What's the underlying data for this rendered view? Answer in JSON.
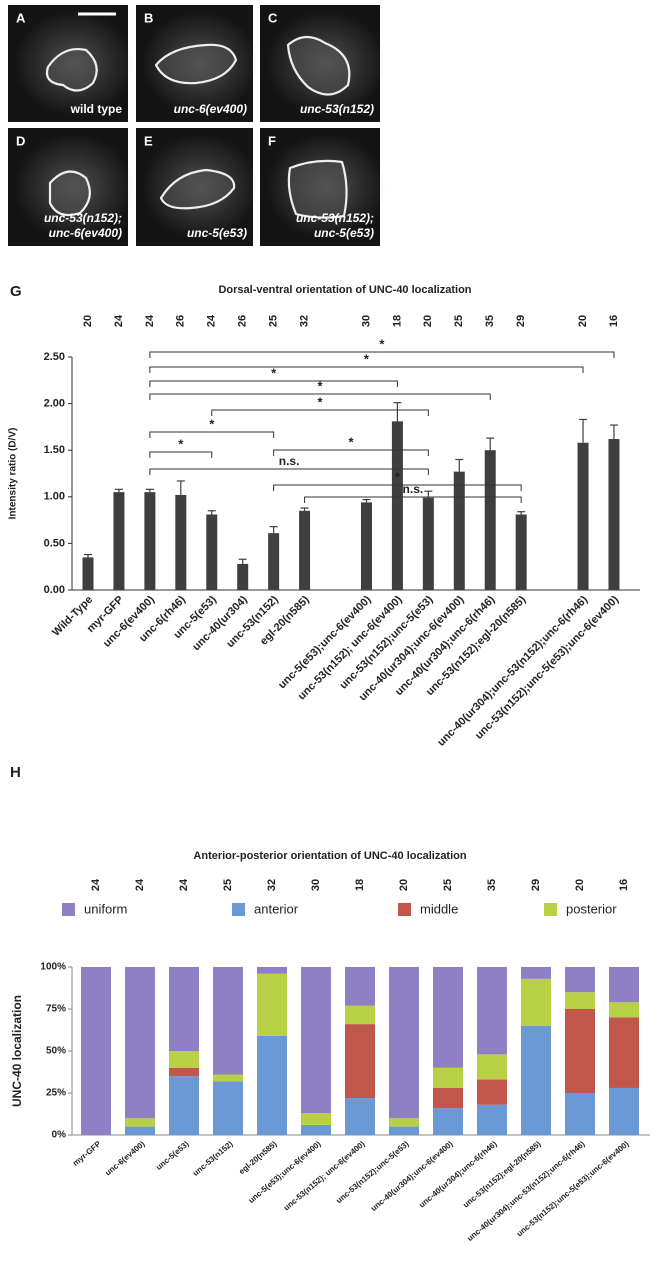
{
  "panels": [
    {
      "letter": "A",
      "label": [
        "wild type"
      ]
    },
    {
      "letter": "B",
      "label": [
        "unc-6(ev400)"
      ]
    },
    {
      "letter": "C",
      "label": [
        "unc-53(n152)"
      ]
    },
    {
      "letter": "D",
      "label": [
        "unc-53(n152);",
        "unc-6(ev400)"
      ]
    },
    {
      "letter": "E",
      "label": [
        "unc-5(e53)"
      ]
    },
    {
      "letter": "F",
      "label": [
        "unc-53(n152);",
        "unc-5(e53)"
      ]
    }
  ],
  "chart_data": [
    {
      "type": "bar",
      "panel": "G",
      "title": "Dorsal-ventral orientation of UNC-40 localization",
      "ylabel": "Intensity ratio (D/V)",
      "categories": [
        "Wild-Type",
        "myr-GFP",
        "unc-6(ev400)",
        "unc-6(rh46)",
        "unc-5(e53)",
        "unc-40(ur304)",
        "unc-53(n152)",
        "egl-20(n585)",
        null,
        "unc-5(e53);unc-6(ev400)",
        "unc-53(n152); unc-6(ev400)",
        "unc-53(n152);unc-5(e53)",
        "unc-40(ur304);unc-6(ev400)",
        "unc-40(ur304);unc-6(rh46)",
        "unc-53(n152);egl-20(n585)",
        null,
        "unc-40(ur304);unc-53(n152);unc-6(rh46)",
        "unc-53(n152);unc-5(e53);unc-6(ev400)"
      ],
      "n_labels": [
        "20",
        "24",
        "24",
        "26",
        "24",
        "26",
        "25",
        "32",
        null,
        "30",
        "18",
        "20",
        "25",
        "35",
        "29",
        null,
        "20",
        "16"
      ],
      "values": [
        0.35,
        1.05,
        1.05,
        1.02,
        0.81,
        0.28,
        0.61,
        0.85,
        null,
        0.94,
        1.81,
        0.99,
        1.27,
        1.5,
        0.81,
        null,
        1.58,
        1.62
      ],
      "errors": [
        0.03,
        0.03,
        0.03,
        0.15,
        0.04,
        0.05,
        0.07,
        0.03,
        null,
        0.03,
        0.2,
        0.07,
        0.13,
        0.13,
        0.03,
        null,
        0.25,
        0.15
      ],
      "color": "#3f3f3f",
      "ylim": [
        0,
        2.5
      ],
      "yticks": [
        {
          "value": 0,
          "label": "0.00"
        },
        {
          "value": 0.5,
          "label": "0.50"
        },
        {
          "value": 1,
          "label": "1.00"
        },
        {
          "value": 1.5,
          "label": "1.50"
        },
        {
          "value": 2,
          "label": "2.00"
        },
        {
          "value": 2.5,
          "label": "2.50"
        }
      ],
      "brackets": [
        {
          "from": 2,
          "to": 17,
          "label": "*"
        },
        {
          "from": 2,
          "to": 16,
          "label": "*"
        },
        {
          "from": 2,
          "to": 10,
          "label": "*"
        },
        {
          "from": 2,
          "to": 13,
          "label": "*"
        },
        {
          "from": 4,
          "to": 11,
          "label": "*"
        },
        {
          "from": 2,
          "to": 6,
          "label": "*"
        },
        {
          "from": 2,
          "to": 4,
          "label": "*"
        },
        {
          "from": 6,
          "to": 11,
          "label": "*"
        },
        {
          "from": 2,
          "to": 11,
          "label": "n.s."
        },
        {
          "from": 6,
          "to": 14,
          "label": "*"
        },
        {
          "from": 7,
          "to": 14,
          "label": "n.s."
        }
      ]
    },
    {
      "type": "stacked-bar",
      "panel": "H",
      "title": "Anterior-posterior orientation of UNC-40 localization",
      "ylabel": "UNC-40 localization",
      "categories": [
        "myr-GFP",
        "unc-6(ev400)",
        "unc-5(e53)",
        "unc-53(n152)",
        "egl-20(n585)",
        "unc-5(e53);unc-6(ev400)",
        "unc-53(n152); unc-6(ev400)",
        "unc-53(n152);unc-5(e53)",
        "unc-40(ur304);unc-6(ev400)",
        "unc-40(ur304);unc-6(rh46)",
        "unc-53(n152);egl-20(n585)",
        "unc-40(ur304);unc-53(n152);unc-6(rh46)",
        "unc-53(n152);unc-5(e53);unc-6(ev400)"
      ],
      "n_labels": [
        "24",
        "24",
        "24",
        "25",
        "32",
        "30",
        "18",
        "20",
        "25",
        "35",
        "29",
        "20",
        "16"
      ],
      "series": [
        {
          "name": "uniform",
          "color": "#8f7fc4",
          "values": [
            100,
            90,
            50,
            64,
            4,
            87,
            23,
            90,
            60,
            52,
            7,
            15,
            21
          ]
        },
        {
          "name": "anterior",
          "color": "#6a99d6",
          "values": [
            0,
            5,
            35,
            32,
            59,
            6,
            22,
            5,
            16,
            18,
            65,
            25,
            28
          ]
        },
        {
          "name": "middle",
          "color": "#c0574a",
          "values": [
            0,
            0,
            5,
            0,
            0,
            0,
            44,
            0,
            12,
            15,
            0,
            50,
            42
          ]
        },
        {
          "name": "posterior",
          "color": "#b8d045",
          "values": [
            0,
            5,
            10,
            4,
            37,
            7,
            11,
            5,
            12,
            15,
            28,
            10,
            9
          ]
        }
      ],
      "ylim": [
        0,
        100
      ],
      "yticks": [
        {
          "value": 0,
          "label": "0%"
        },
        {
          "value": 25,
          "label": "25%"
        },
        {
          "value": 50,
          "label": "50%"
        },
        {
          "value": 75,
          "label": "75%"
        },
        {
          "value": 100,
          "label": "100%"
        }
      ]
    }
  ]
}
